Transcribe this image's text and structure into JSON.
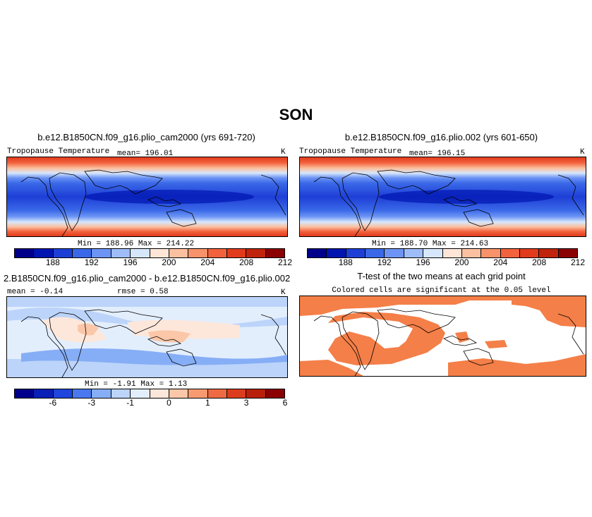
{
  "figure": {
    "title": "SON"
  },
  "chart_data": [
    {
      "type": "heatmap",
      "title": "b.e12.B1850CN.f09_g16.plio_cam2000 (yrs 691-720)",
      "variable": "Tropopause Temperature",
      "mean_label": "mean=",
      "mean": "196.01",
      "unit": "K",
      "min_label": "Min =",
      "min": "188.96",
      "max_label": "Max =",
      "max": "214.22",
      "colorbar_ticks": [
        "188",
        "192",
        "196",
        "200",
        "204",
        "208",
        "212"
      ],
      "colors": [
        "#00008b",
        "#0015b0",
        "#1e3fd6",
        "#3a68e8",
        "#6c94f4",
        "#9ebdf8",
        "#d6e7fc",
        "#fde6d7",
        "#fbc0a0",
        "#f8926a",
        "#f2623d",
        "#e23b1c",
        "#c0240c",
        "#8b0000"
      ]
    },
    {
      "type": "heatmap",
      "title": "b.e12.B1850CN.f09_g16.plio.002 (yrs 601-650)",
      "variable": "Tropopause Temperature",
      "mean_label": "mean=",
      "mean": "196.15",
      "unit": "K",
      "min_label": "Min =",
      "min": "188.70",
      "max_label": "Max =",
      "max": "214.63",
      "colorbar_ticks": [
        "188",
        "192",
        "196",
        "200",
        "204",
        "208",
        "212"
      ],
      "colors": [
        "#00008b",
        "#0015b0",
        "#1e3fd6",
        "#3a68e8",
        "#6c94f4",
        "#9ebdf8",
        "#d6e7fc",
        "#fde6d7",
        "#fbc0a0",
        "#f8926a",
        "#f2623d",
        "#e23b1c",
        "#c0240c",
        "#8b0000"
      ]
    },
    {
      "type": "heatmap",
      "title": "2.B1850CN.f09_g16.plio_cam2000 - b.e12.B1850CN.f09_g16.plio.002",
      "mean_label": "mean =",
      "mean": "-0.14",
      "rmse_label": "rmse =",
      "rmse": "0.58",
      "unit": "K",
      "min_label": "Min =",
      "min": "-1.91",
      "max_label": "Max =",
      "max": "1.13",
      "colorbar_ticks": [
        "-6",
        "-3",
        "-1",
        "0",
        "1",
        "3",
        "6"
      ],
      "colors": [
        "#00008b",
        "#0a1fb5",
        "#1f45dc",
        "#4a78ee",
        "#86aef6",
        "#bcd4fa",
        "#e3eefd",
        "#fde7da",
        "#fbc7a8",
        "#f79a72",
        "#ee6a43",
        "#dc3c1e",
        "#b8200b",
        "#8b0000"
      ]
    },
    {
      "type": "heatmap",
      "title": "T-test of the two means at each grid point",
      "subtitle": "Colored cells are significant at the 0.05 level",
      "color": "#f47f48"
    }
  ]
}
